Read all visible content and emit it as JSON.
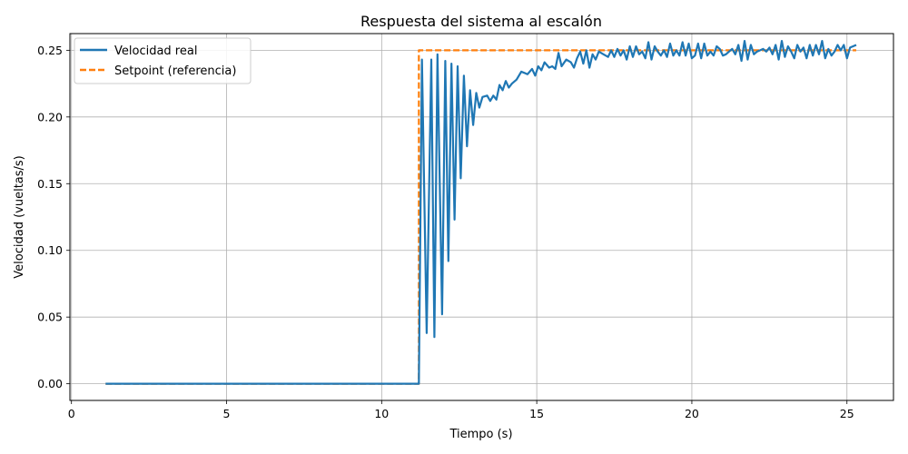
{
  "chart_data": {
    "type": "line",
    "title": "Respuesta del sistema al escalón",
    "xlabel": "Tiempo (s)",
    "ylabel": "Velocidad (vueltas/s)",
    "xlim": [
      -0.05,
      26.5
    ],
    "ylim": [
      -0.0125,
      0.2625
    ],
    "xticks": [
      0,
      5,
      10,
      15,
      20,
      25
    ],
    "xtick_labels": [
      "0",
      "5",
      "10",
      "15",
      "20",
      "25"
    ],
    "yticks": [
      0.0,
      0.05,
      0.1,
      0.15,
      0.2,
      0.25
    ],
    "ytick_labels": [
      "0.00",
      "0.05",
      "0.10",
      "0.15",
      "0.20",
      "0.25"
    ],
    "grid": true,
    "legend_position": "top-left",
    "series": [
      {
        "name": "Velocidad real",
        "color": "#1f77b4",
        "style": "solid",
        "points": [
          [
            1.1,
            0.0
          ],
          [
            11.2,
            0.0
          ],
          [
            11.3,
            0.243
          ],
          [
            11.45,
            0.038
          ],
          [
            11.6,
            0.243
          ],
          [
            11.7,
            0.035
          ],
          [
            11.8,
            0.247
          ],
          [
            11.95,
            0.052
          ],
          [
            12.05,
            0.242
          ],
          [
            12.15,
            0.092
          ],
          [
            12.25,
            0.24
          ],
          [
            12.35,
            0.123
          ],
          [
            12.45,
            0.238
          ],
          [
            12.55,
            0.154
          ],
          [
            12.65,
            0.231
          ],
          [
            12.75,
            0.178
          ],
          [
            12.85,
            0.22
          ],
          [
            12.95,
            0.194
          ],
          [
            13.05,
            0.218
          ],
          [
            13.15,
            0.207
          ],
          [
            13.25,
            0.215
          ],
          [
            13.4,
            0.216
          ],
          [
            13.5,
            0.212
          ],
          [
            13.6,
            0.216
          ],
          [
            13.7,
            0.213
          ],
          [
            13.8,
            0.224
          ],
          [
            13.9,
            0.22
          ],
          [
            14.0,
            0.227
          ],
          [
            14.1,
            0.222
          ],
          [
            14.2,
            0.225
          ],
          [
            14.35,
            0.228
          ],
          [
            14.5,
            0.234
          ],
          [
            14.6,
            0.233
          ],
          [
            14.7,
            0.232
          ],
          [
            14.85,
            0.236
          ],
          [
            14.95,
            0.231
          ],
          [
            15.05,
            0.238
          ],
          [
            15.15,
            0.235
          ],
          [
            15.25,
            0.241
          ],
          [
            15.4,
            0.237
          ],
          [
            15.5,
            0.238
          ],
          [
            15.6,
            0.236
          ],
          [
            15.7,
            0.248
          ],
          [
            15.8,
            0.238
          ],
          [
            15.95,
            0.243
          ],
          [
            16.1,
            0.241
          ],
          [
            16.2,
            0.237
          ],
          [
            16.3,
            0.244
          ],
          [
            16.4,
            0.249
          ],
          [
            16.5,
            0.24
          ],
          [
            16.6,
            0.25
          ],
          [
            16.7,
            0.237
          ],
          [
            16.8,
            0.247
          ],
          [
            16.9,
            0.243
          ],
          [
            17.0,
            0.249
          ],
          [
            17.15,
            0.247
          ],
          [
            17.3,
            0.245
          ],
          [
            17.4,
            0.25
          ],
          [
            17.5,
            0.245
          ],
          [
            17.6,
            0.251
          ],
          [
            17.7,
            0.246
          ],
          [
            17.8,
            0.25
          ],
          [
            17.9,
            0.243
          ],
          [
            18.0,
            0.253
          ],
          [
            18.1,
            0.245
          ],
          [
            18.2,
            0.253
          ],
          [
            18.3,
            0.247
          ],
          [
            18.4,
            0.249
          ],
          [
            18.5,
            0.244
          ],
          [
            18.6,
            0.256
          ],
          [
            18.7,
            0.243
          ],
          [
            18.8,
            0.253
          ],
          [
            18.9,
            0.249
          ],
          [
            19.0,
            0.246
          ],
          [
            19.1,
            0.25
          ],
          [
            19.2,
            0.245
          ],
          [
            19.3,
            0.255
          ],
          [
            19.4,
            0.246
          ],
          [
            19.5,
            0.25
          ],
          [
            19.6,
            0.246
          ],
          [
            19.7,
            0.256
          ],
          [
            19.8,
            0.246
          ],
          [
            19.9,
            0.255
          ],
          [
            20.0,
            0.244
          ],
          [
            20.1,
            0.246
          ],
          [
            20.2,
            0.255
          ],
          [
            20.3,
            0.244
          ],
          [
            20.4,
            0.255
          ],
          [
            20.5,
            0.246
          ],
          [
            20.6,
            0.249
          ],
          [
            20.7,
            0.246
          ],
          [
            20.8,
            0.253
          ],
          [
            20.9,
            0.251
          ],
          [
            21.0,
            0.246
          ],
          [
            21.1,
            0.247
          ],
          [
            21.2,
            0.249
          ],
          [
            21.3,
            0.251
          ],
          [
            21.4,
            0.247
          ],
          [
            21.5,
            0.254
          ],
          [
            21.6,
            0.242
          ],
          [
            21.7,
            0.257
          ],
          [
            21.8,
            0.243
          ],
          [
            21.9,
            0.254
          ],
          [
            22.0,
            0.247
          ],
          [
            22.1,
            0.249
          ],
          [
            22.2,
            0.25
          ],
          [
            22.3,
            0.251
          ],
          [
            22.4,
            0.249
          ],
          [
            22.5,
            0.252
          ],
          [
            22.6,
            0.247
          ],
          [
            22.7,
            0.254
          ],
          [
            22.8,
            0.243
          ],
          [
            22.9,
            0.257
          ],
          [
            23.0,
            0.245
          ],
          [
            23.1,
            0.253
          ],
          [
            23.2,
            0.249
          ],
          [
            23.3,
            0.244
          ],
          [
            23.4,
            0.254
          ],
          [
            23.5,
            0.249
          ],
          [
            23.6,
            0.252
          ],
          [
            23.7,
            0.244
          ],
          [
            23.8,
            0.254
          ],
          [
            23.9,
            0.246
          ],
          [
            24.0,
            0.254
          ],
          [
            24.1,
            0.247
          ],
          [
            24.2,
            0.257
          ],
          [
            24.3,
            0.244
          ],
          [
            24.4,
            0.251
          ],
          [
            24.5,
            0.246
          ],
          [
            24.6,
            0.249
          ],
          [
            24.7,
            0.254
          ],
          [
            24.8,
            0.25
          ],
          [
            24.9,
            0.254
          ],
          [
            25.0,
            0.244
          ],
          [
            25.1,
            0.252
          ],
          [
            25.3,
            0.254
          ]
        ]
      },
      {
        "name": "Setpoint (referencia)",
        "color": "#ff7f0e",
        "style": "dashed",
        "points": [
          [
            1.1,
            0.0
          ],
          [
            11.2,
            0.0
          ],
          [
            11.2,
            0.25
          ],
          [
            25.3,
            0.25
          ]
        ]
      }
    ]
  }
}
